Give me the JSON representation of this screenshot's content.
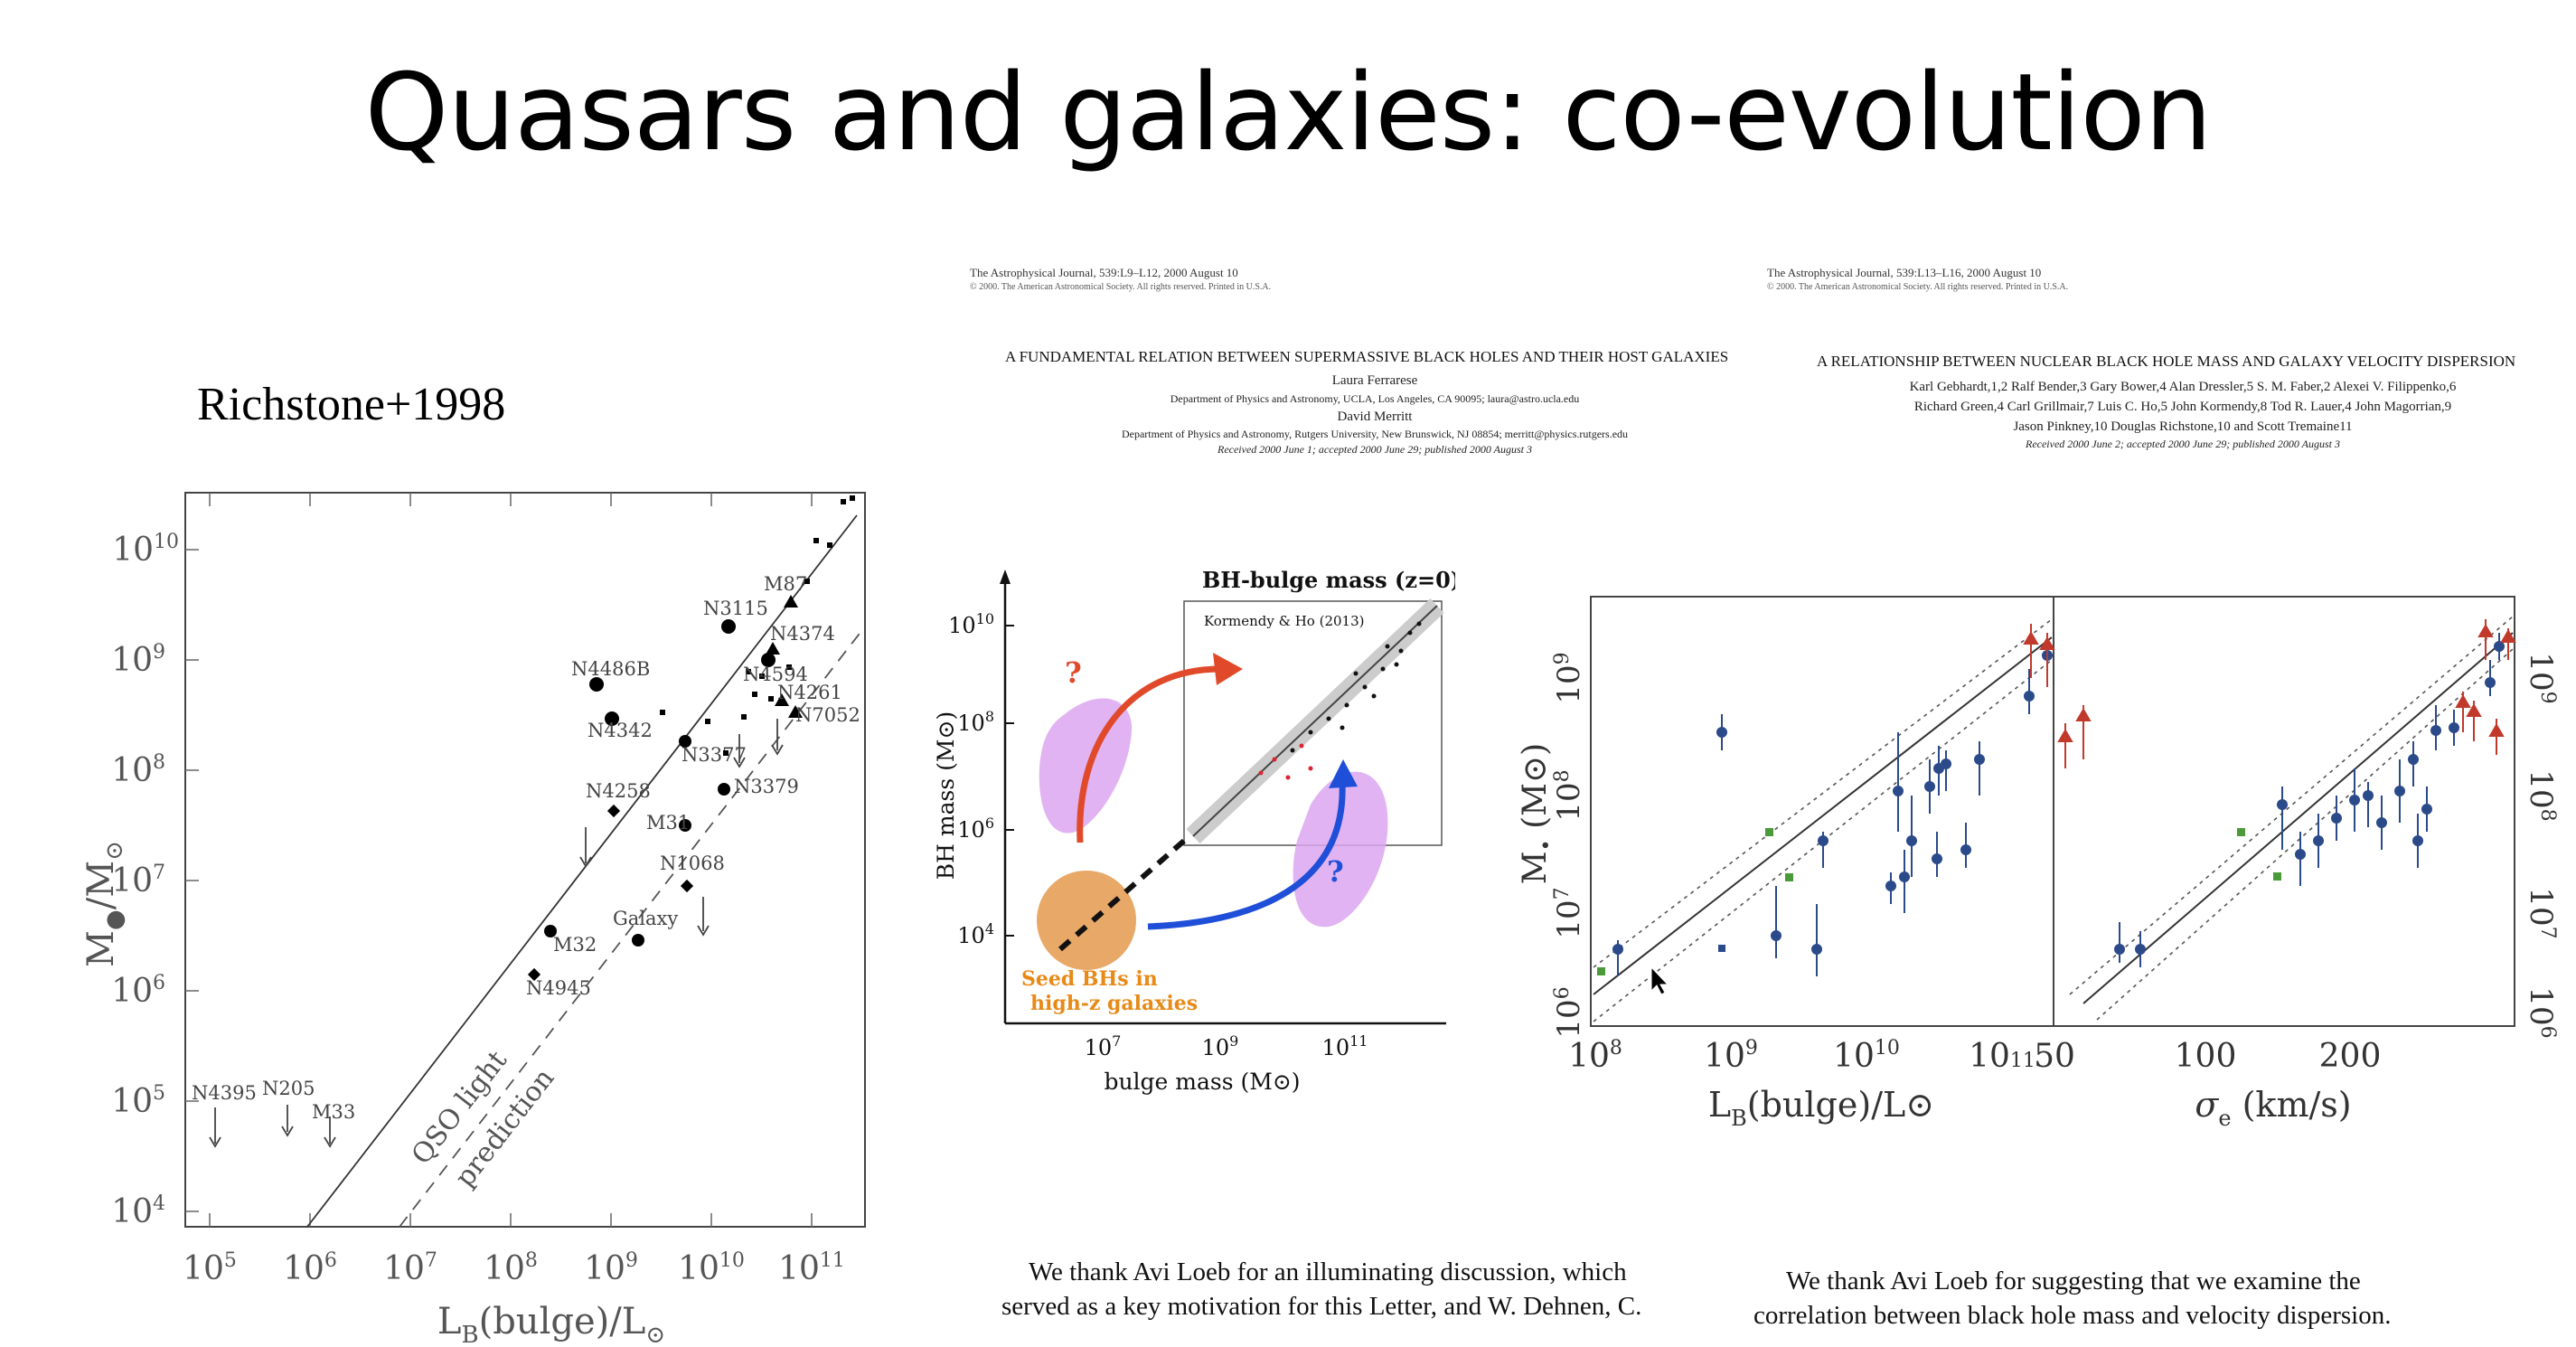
{
  "slide": {
    "title": "Quasars and galaxies: co-evolution"
  },
  "left_panel": {
    "citation": "Richstone+1998",
    "ylabel_main": "M",
    "ylabel_sub": "/M",
    "xlabel_main": "L",
    "xlabel_sub_b": "B",
    "xlabel_rest": "(bulge)/L",
    "x_ticks": [
      {
        "b": "10",
        "e": "5"
      },
      {
        "b": "10",
        "e": "6"
      },
      {
        "b": "10",
        "e": "7"
      },
      {
        "b": "10",
        "e": "8"
      },
      {
        "b": "10",
        "e": "9"
      },
      {
        "b": "10",
        "e": "10"
      },
      {
        "b": "10",
        "e": "11"
      }
    ],
    "y_ticks": [
      {
        "b": "10",
        "e": "4"
      },
      {
        "b": "10",
        "e": "5"
      },
      {
        "b": "10",
        "e": "6"
      },
      {
        "b": "10",
        "e": "7"
      },
      {
        "b": "10",
        "e": "8"
      },
      {
        "b": "10",
        "e": "9"
      },
      {
        "b": "10",
        "e": "10"
      }
    ],
    "labels": {
      "m87": "M87",
      "n3115": "N3115",
      "n4374": "N4374",
      "n4486b": "N4486B",
      "n4594": "N4594",
      "n4261": "N4261",
      "n4342": "N4342",
      "n7052": "N7052",
      "n3377": "N3377",
      "n3379": "N3379",
      "n4258": "N4258",
      "m31": "M31",
      "n1068": "N1068",
      "galaxy": "Galaxy",
      "m32": "M32",
      "n4945": "N4945",
      "n4395": "N4395",
      "n205": "N205",
      "m33": "M33"
    },
    "line_solid": "QSO light",
    "line_dashed": "prediction"
  },
  "middle_panel": {
    "journal": "The Astrophysical Journal, 539:L9–L12, 2000 August 10",
    "copyright": "© 2000. The American Astronomical Society. All rights reserved. Printed in U.S.A.",
    "title": "A FUNDAMENTAL RELATION BETWEEN SUPERMASSIVE BLACK HOLES AND THEIR HOST GALAXIES",
    "author1": "Laura Ferrarese",
    "affil1": "Department of Physics and Astronomy, UCLA, Los Angeles, CA 90095; laura@astro.ucla.edu",
    "author2": "David Merritt",
    "affil2": "Department of Physics and Astronomy, Rutgers University, New Brunswick, NJ 08854; merritt@physics.rutgers.edu",
    "received": "Received 2000 June 1; accepted 2000 June 29; published 2000 August 3",
    "ack": [
      "We thank Avi Loeb for an illuminating discussion, which",
      "served as a key motivation for this Letter, and W. Dehnen, C."
    ],
    "figure": {
      "ylabel": "BH mass (M⊙)",
      "xlabel": "bulge mass (M⊙)",
      "inset_title": "BH-bulge mass (z=0)",
      "inset_ref": "Kormendy & Ho (2013)",
      "seed_line1": "Seed BHs in",
      "seed_line2": "high-z galaxies",
      "question": "?",
      "x_ticks": [
        {
          "b": "10",
          "e": "7"
        },
        {
          "b": "10",
          "e": "9"
        },
        {
          "b": "10",
          "e": "11"
        }
      ],
      "y_ticks": [
        {
          "b": "10",
          "e": "10"
        },
        {
          "b": "10",
          "e": "8"
        },
        {
          "b": "10",
          "e": "6"
        },
        {
          "b": "10",
          "e": "4"
        }
      ]
    }
  },
  "right_panel": {
    "journal": "The Astrophysical Journal, 539:L13–L16, 2000 August 10",
    "copyright": "© 2000. The American Astronomical Society. All rights reserved. Printed in U.S.A.",
    "title": "A RELATIONSHIP BETWEEN NUCLEAR BLACK HOLE MASS AND GALAXY VELOCITY DISPERSION",
    "authors1": "Karl Gebhardt,1,2 Ralf Bender,3 Gary Bower,4 Alan Dressler,5 S. M. Faber,2 Alexei V. Filippenko,6",
    "authors2": "Richard Green,4 Carl Grillmair,7 Luis C. Ho,5 John Kormendy,8 Tod R. Lauer,4 John Magorrian,9",
    "authors3": "Jason Pinkney,10 Douglas Richstone,10 and Scott Tremaine11",
    "received": "Received 2000 June 2; accepted 2000 June 29; published 2000 August 3",
    "ack": [
      "We thank Avi Loeb for suggesting that we examine the",
      "correlation between black hole mass and velocity dispersion."
    ],
    "figure": {
      "ylabel": "M",
      "ylabel_sub": "•",
      "ylabel_unit": " (M⊙)",
      "xlabel_left": "L",
      "xlabel_left_sub": "B",
      "xlabel_left_rest": "(bulge)/L⊙",
      "xlabel_right": "σ",
      "xlabel_right_sub": "e",
      "xlabel_right_rest": "  (km/s)",
      "x_ticks_left": [
        {
          "b": "10",
          "e": "8"
        },
        {
          "b": "10",
          "e": "9"
        },
        {
          "b": "10",
          "e": "10"
        },
        {
          "b": "10",
          "e": "11"
        }
      ],
      "x_ticks_right": [
        "50",
        "100",
        "200"
      ],
      "y_ticks": [
        {
          "b": "10",
          "e": "9"
        },
        {
          "b": "10",
          "e": "8"
        },
        {
          "b": "10",
          "e": "7"
        },
        {
          "b": "10",
          "e": "6"
        }
      ]
    }
  },
  "colors": {
    "text": "#000000",
    "points_blue": "#2b4a8a",
    "points_red": "#c0392b",
    "points_green": "#4a9a3a",
    "arrow_red": "#e04a2a",
    "arrow_blue": "#1f4fd8",
    "blob_pink": "#dca6f0",
    "seed_orange": "#e8a868",
    "seed_text": "#e88a18"
  }
}
